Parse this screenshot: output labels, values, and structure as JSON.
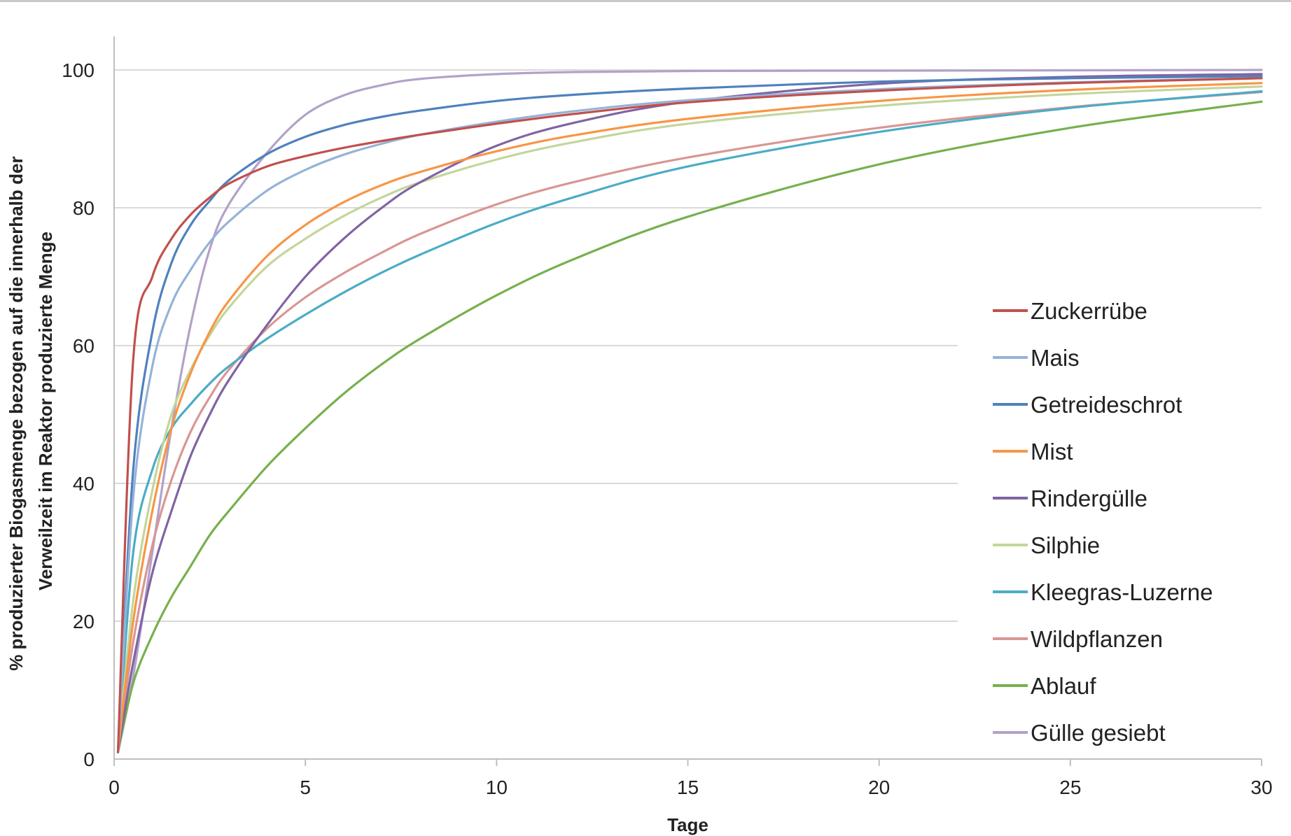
{
  "chart_data": {
    "type": "line",
    "title": "",
    "xlabel": "Tage",
    "ylabel_lines": [
      "% produzierter Biogasmenge bezogen auf die innerhalb der",
      "Verweilzeit im Reaktor produzierte Menge"
    ],
    "xlim": [
      0,
      30
    ],
    "ylim": [
      0,
      100
    ],
    "x_ticks": [
      "0",
      "5",
      "10",
      "15",
      "20",
      "25",
      "30"
    ],
    "y_ticks": [
      "0",
      "20",
      "40",
      "60",
      "80",
      "100"
    ],
    "grid": "horizontal",
    "legend_position": "right",
    "x": [
      0.1,
      0.5,
      1,
      1.5,
      2,
      2.5,
      3,
      4,
      5,
      6,
      7,
      8,
      10,
      12,
      15,
      20,
      25,
      30
    ],
    "series": [
      {
        "name": "Zuckerrübe",
        "color": "#c0504d",
        "values": [
          1,
          58,
          70,
          75.5,
          79,
          81.5,
          83.5,
          86,
          87.5,
          88.7,
          89.7,
          90.6,
          92.2,
          93.6,
          95.3,
          97,
          98.1,
          98.8
        ]
      },
      {
        "name": "Mais",
        "color": "#95b3d7",
        "values": [
          1,
          38,
          57,
          66,
          71,
          75,
          78,
          82.5,
          85.5,
          87.7,
          89.3,
          90.6,
          92.5,
          94,
          95.6,
          97.2,
          98.2,
          98.8
        ]
      },
      {
        "name": "Getreideschrot",
        "color": "#4f81bd",
        "values": [
          1,
          42,
          62,
          72,
          77.5,
          81,
          84,
          87.8,
          90.3,
          92,
          93.2,
          94.1,
          95.5,
          96.4,
          97.3,
          98.3,
          98.8,
          99.1
        ]
      },
      {
        "name": "Mist",
        "color": "#f79646",
        "values": [
          1,
          20,
          36,
          48,
          56,
          62,
          66.5,
          73,
          77.5,
          80.8,
          83.3,
          85.2,
          88.2,
          90.5,
          92.9,
          95.5,
          97.1,
          98.1
        ]
      },
      {
        "name": "Rindergülle",
        "color": "#8064a2",
        "values": [
          1,
          14,
          27,
          36,
          44,
          50,
          55,
          63,
          70,
          75.5,
          80,
          83.7,
          89,
          92.3,
          95.4,
          98,
          99,
          99.4
        ]
      },
      {
        "name": "Silphie",
        "color": "#c3d69b",
        "values": [
          1,
          23,
          39,
          50,
          56.5,
          61.5,
          65.5,
          71.5,
          75.5,
          78.8,
          81.5,
          83.7,
          87,
          89.5,
          92.2,
          94.8,
          96.5,
          97.6
        ]
      },
      {
        "name": "Kleegras-Luzerne",
        "color": "#4bacc6",
        "values": [
          1,
          30,
          42,
          48,
          51.5,
          54.5,
          57,
          61,
          64.5,
          67.7,
          70.6,
          73.2,
          77.8,
          81.5,
          86,
          91,
          94.5,
          96.9
        ]
      },
      {
        "name": "Wildpflanzen",
        "color": "#d99694",
        "values": [
          1,
          17,
          31,
          40.5,
          47.5,
          52.5,
          56.5,
          62.5,
          67,
          70.5,
          73.5,
          76.2,
          80.5,
          83.7,
          87.3,
          91.6,
          94.6,
          96.8
        ]
      },
      {
        "name": "Ablauf",
        "color": "#77b04d",
        "values": [
          1,
          11,
          18,
          23.5,
          28,
          32.5,
          36,
          42.5,
          48,
          53,
          57.3,
          61,
          67.3,
          72.5,
          78.7,
          86.3,
          91.6,
          95.4
        ]
      },
      {
        "name": "Gülle gesiebt",
        "color": "#b2a2c7",
        "values": [
          1,
          12,
          30,
          48,
          63,
          74,
          80.5,
          88,
          93.5,
          96.3,
          97.8,
          98.7,
          99.4,
          99.7,
          99.85,
          99.9,
          99.95,
          100
        ]
      }
    ]
  }
}
